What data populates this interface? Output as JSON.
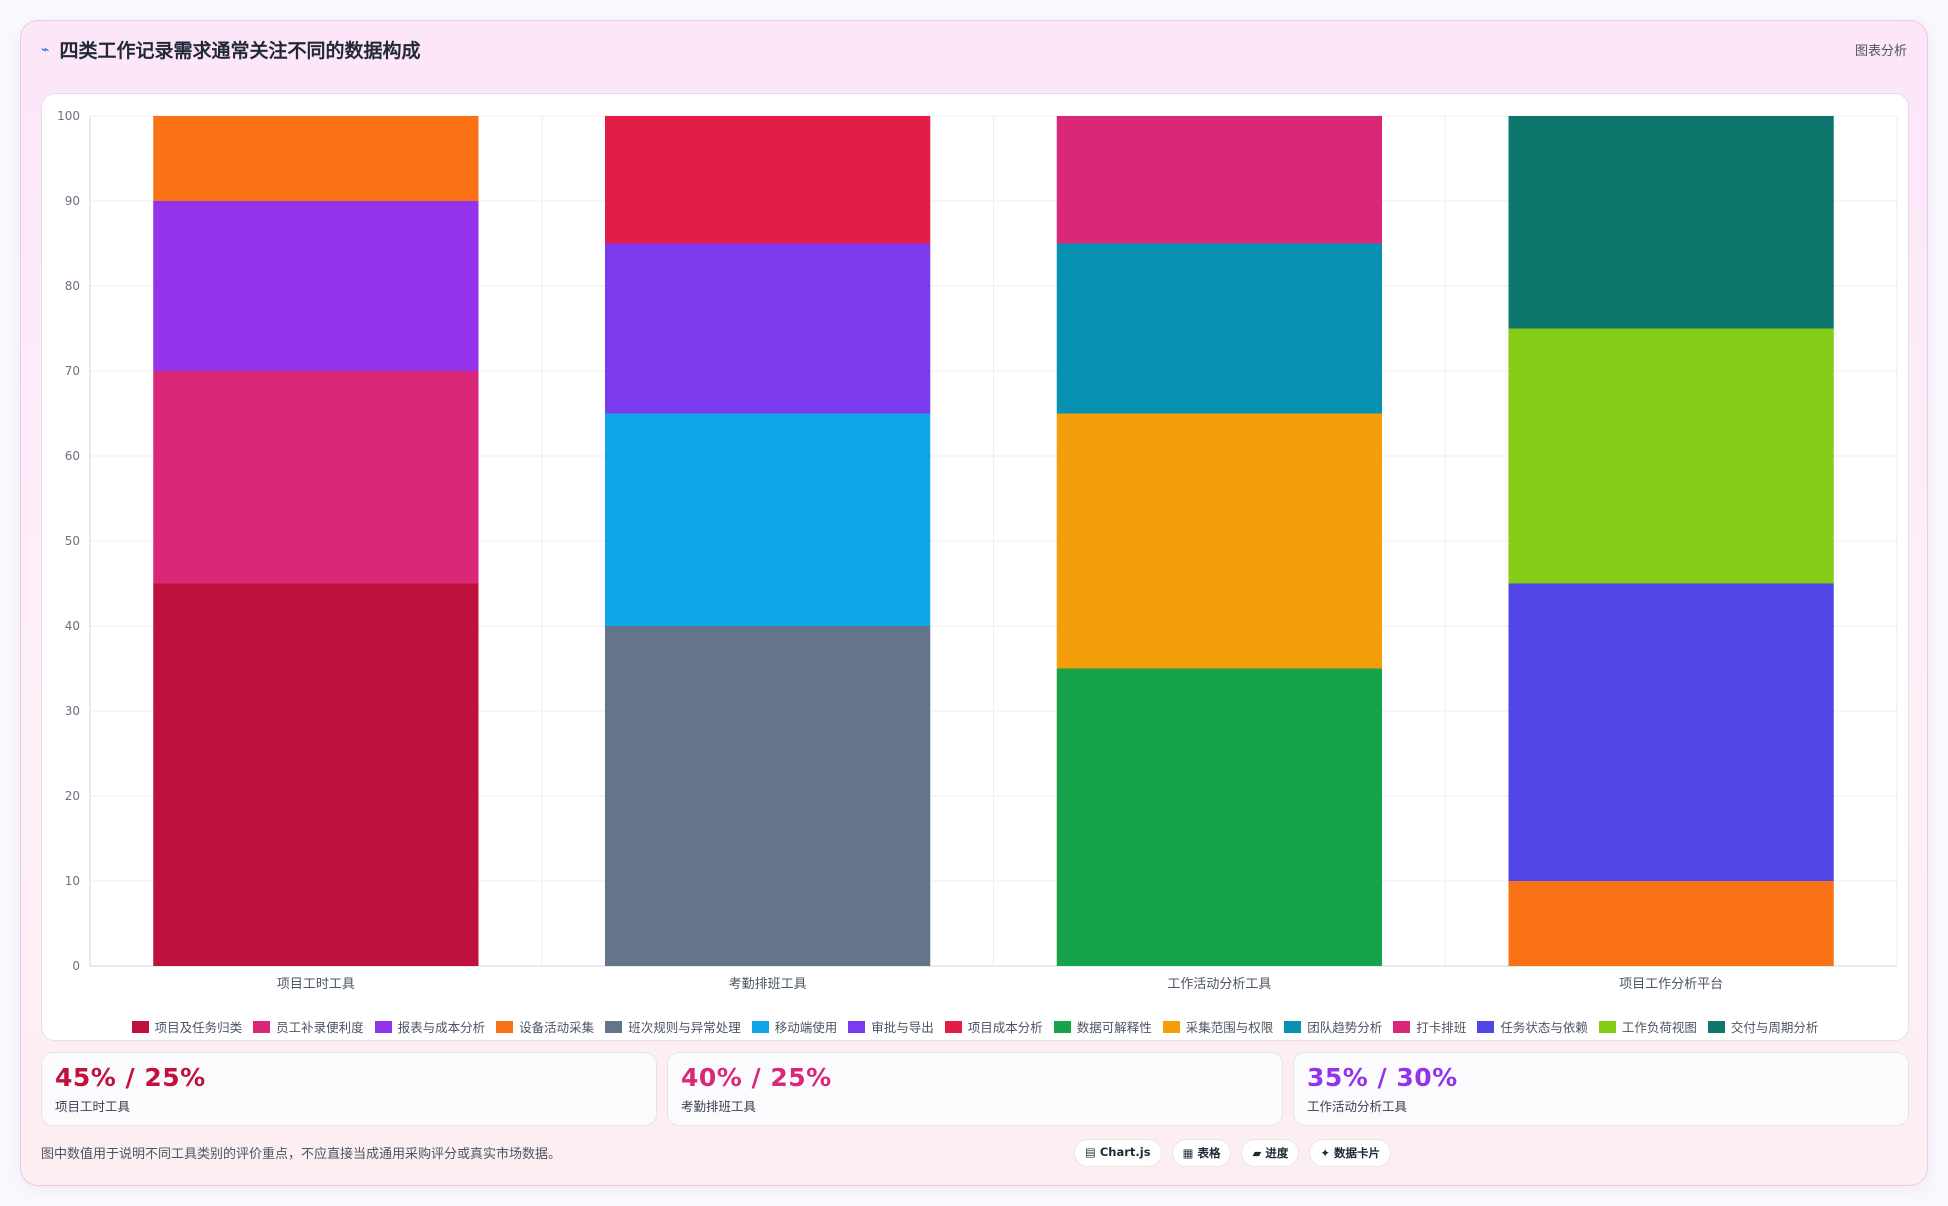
{
  "header": {
    "icon": "trend-icon",
    "title": "四类工作记录需求通常关注不同的数据构成",
    "link_label": "图表分析"
  },
  "chart_data": {
    "type": "bar",
    "stacked": true,
    "categories": [
      "项目工时工具",
      "考勤排班工具",
      "工作活动分析工具",
      "项目工作分析平台"
    ],
    "ylim": [
      0,
      100
    ],
    "yticks": [
      0,
      10,
      20,
      30,
      40,
      50,
      60,
      70,
      80,
      90,
      100
    ],
    "grid": true,
    "legend_position": "bottom",
    "series": [
      {
        "name": "项目及任务归类",
        "color": "#be123c",
        "values": [
          45,
          0,
          0,
          0
        ]
      },
      {
        "name": "员工补录便利度",
        "color": "#db2777",
        "values": [
          25,
          0,
          0,
          0
        ]
      },
      {
        "name": "报表与成本分析",
        "color": "#9333ea",
        "values": [
          20,
          0,
          0,
          0
        ]
      },
      {
        "name": "设备活动采集",
        "color": "#f97316",
        "values": [
          10,
          0,
          0,
          10
        ]
      },
      {
        "name": "班次规则与异常处理",
        "color": "#64748b",
        "values": [
          0,
          40,
          0,
          0
        ]
      },
      {
        "name": "移动端使用",
        "color": "#0ea5e9",
        "values": [
          0,
          25,
          0,
          0
        ]
      },
      {
        "name": "审批与导出",
        "color": "#7c3aed",
        "values": [
          0,
          20,
          0,
          0
        ]
      },
      {
        "name": "项目成本分析",
        "color": "#e11d48",
        "values": [
          0,
          15,
          0,
          0
        ]
      },
      {
        "name": "数据可解释性",
        "color": "#16a34a",
        "values": [
          0,
          0,
          35,
          0
        ]
      },
      {
        "name": "采集范围与权限",
        "color": "#f59e0b",
        "values": [
          0,
          0,
          30,
          0
        ]
      },
      {
        "name": "团队趋势分析",
        "color": "#0891b2",
        "values": [
          0,
          0,
          20,
          0
        ]
      },
      {
        "name": "打卡排班",
        "color": "#db2777",
        "values": [
          0,
          0,
          15,
          0
        ]
      },
      {
        "name": "任务状态与依赖",
        "color": "#4f46e5",
        "values": [
          0,
          0,
          0,
          35
        ]
      },
      {
        "name": "工作负荷视图",
        "color": "#84cc16",
        "values": [
          0,
          0,
          0,
          30
        ]
      },
      {
        "name": "交付与周期分析",
        "color": "#0f766e",
        "values": [
          0,
          0,
          0,
          25
        ]
      }
    ],
    "stack_order": [
      [
        "项目及任务归类",
        "员工补录便利度",
        "报表与成本分析",
        "设备活动采集"
      ],
      [
        "班次规则与异常处理",
        "移动端使用",
        "审批与导出",
        "项目成本分析"
      ],
      [
        "数据可解释性",
        "采集范围与权限",
        "团队趋势分析",
        "打卡排班"
      ],
      [
        "设备活动采集",
        "任务状态与依赖",
        "工作负荷视图",
        "交付与周期分析"
      ]
    ]
  },
  "stats": [
    {
      "value": "45% / 25%",
      "label": "项目工时工具",
      "color": "#be123c"
    },
    {
      "value": "40% / 25%",
      "label": "考勤排班工具",
      "color": "#db2777"
    },
    {
      "value": "35% / 30%",
      "label": "工作活动分析工具",
      "color": "#9333ea"
    }
  ],
  "footer": {
    "note": "图中数值用于说明不同工具类别的评价重点，不应直接当成通用采购评分或真实市场数据。",
    "tags": [
      "▤ Chart.js",
      "▦ 表格",
      "▰ 进度",
      "✦ 数据卡片"
    ]
  }
}
